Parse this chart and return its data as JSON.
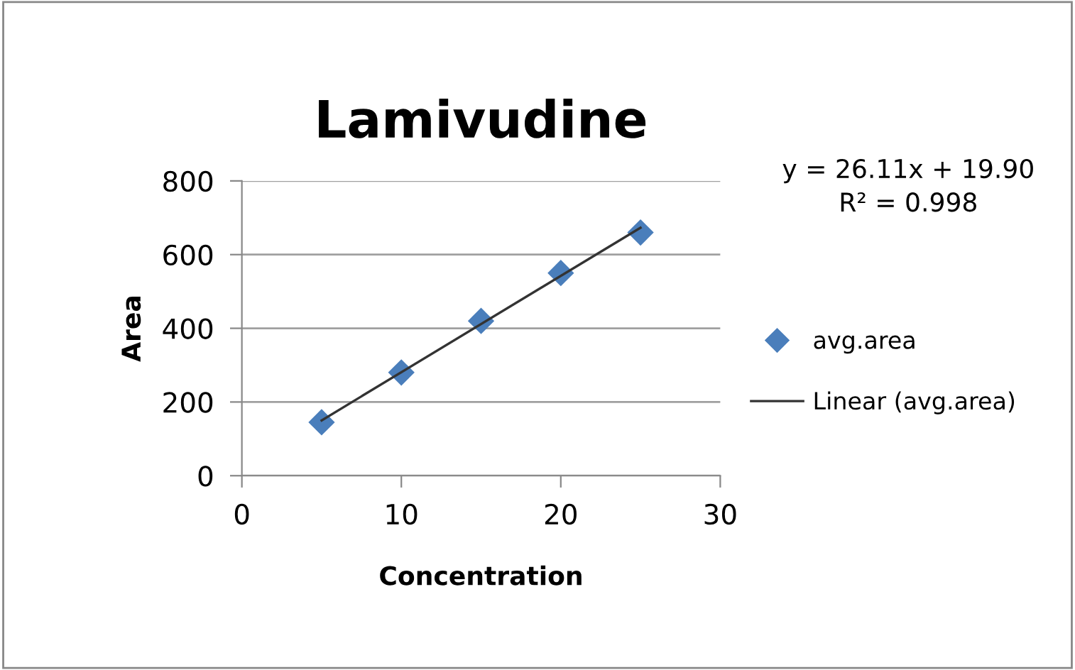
{
  "chart_data": {
    "type": "scatter",
    "title": "Lamivudine",
    "xlabel": "Concentration",
    "ylabel": "Area",
    "x": [
      5,
      10,
      15,
      20,
      25
    ],
    "series": [
      {
        "name": "avg.area",
        "color": "#4a7ebb",
        "marker": "diamond",
        "values": [
          145,
          280,
          420,
          550,
          660
        ]
      },
      {
        "name": "Linear (avg.area)",
        "type": "line",
        "color": "#333333",
        "marker": "none",
        "line_style": "solid",
        "x": [
          5,
          25
        ],
        "values": [
          150,
          673
        ]
      }
    ],
    "annotations": [
      "y = 26.11x + 19.90",
      "R² = 0.998"
    ],
    "xlim": [
      0,
      30
    ],
    "xticks": [
      0,
      10,
      20,
      30
    ],
    "ylim": [
      0,
      800
    ],
    "yticks": [
      0,
      200,
      400,
      600,
      800
    ],
    "grid": "y",
    "legend": "right"
  }
}
